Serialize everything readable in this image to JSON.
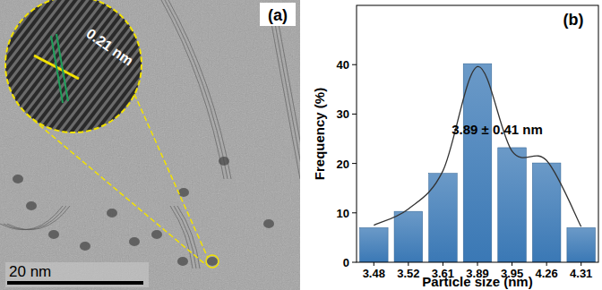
{
  "image": {
    "panel_label": "(a)",
    "lattice_spacing": "0.21 nm",
    "scale_bar": "20 nm"
  },
  "chart_data": {
    "type": "bar",
    "panel_label": "(b)",
    "categories": [
      "3.48",
      "3.52",
      "3.61",
      "3.89",
      "3.95",
      "4.26",
      "4.31"
    ],
    "series": [
      {
        "type": "bar",
        "color": "#3a78b5",
        "values": [
          7,
          10.3,
          18,
          40.2,
          23.2,
          20.1,
          7
        ]
      },
      {
        "type": "line",
        "color": "#333333",
        "line_style": "solid",
        "values": [
          7.5,
          10.8,
          18.5,
          39.6,
          22.5,
          20.6,
          7.2
        ]
      }
    ],
    "ylim": [
      0,
      52
    ],
    "yticks": [
      0,
      10,
      20,
      30,
      40
    ],
    "xlabel": "Particle size (nm)",
    "ylabel": "Frequency (%)",
    "annotation": "3.89 ± 0.41 nm",
    "grid": false
  }
}
